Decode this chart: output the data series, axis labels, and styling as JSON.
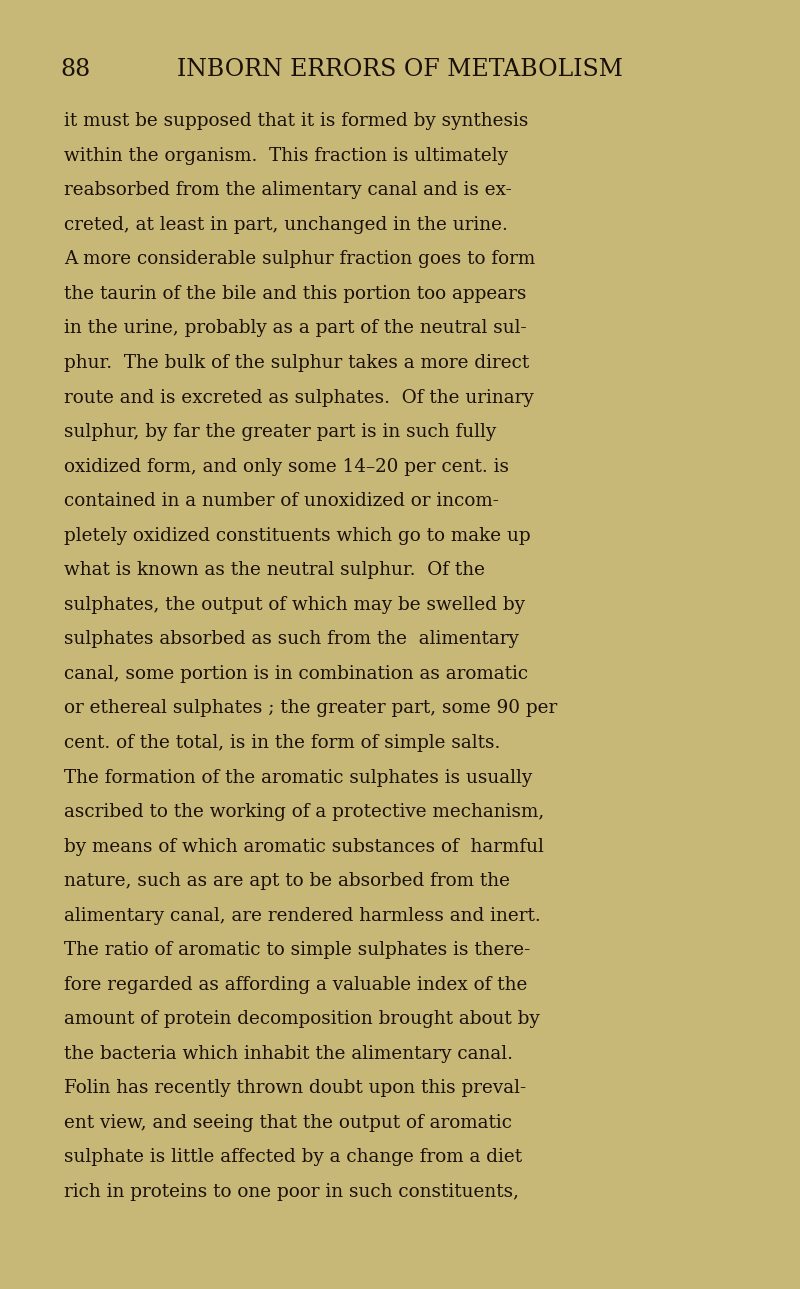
{
  "background_color": "#c8b878",
  "header_number": "88",
  "header_title": "INBORN ERRORS OF METABOLISM",
  "header_fontsize": 17,
  "header_number_fontsize": 17,
  "text_color": "#1a1008",
  "text_fontsize": 13.2,
  "lines": [
    "it must be supposed that it is formed by synthesis",
    "within the organism.  This fraction is ultimately",
    "reabsorbed from the alimentary canal and is ex-",
    "creted, at least in part, unchanged in the urine.",
    "A more considerable sulphur fraction goes to form",
    "the taurin of the bile and this portion too appears",
    "in the urine, probably as a part of the neutral sul-",
    "phur.  The bulk of the sulphur takes a more direct",
    "route and is excreted as sulphates.  Of the urinary",
    "sulphur, by far the greater part is in such fully",
    "oxidized form, and only some 14–20 per cent. is",
    "contained in a number of unoxidized or incom-",
    "pletely oxidized constituents which go to make up",
    "what is known as the neutral sulphur.  Of the",
    "sulphates, the output of which may be swelled by",
    "sulphates absorbed as such from the  alimentary",
    "canal, some portion is in combination as aromatic",
    "or ethereal sulphates ; the greater part, some 90 per",
    "cent. of the total, is in the form of simple salts.",
    "The formation of the aromatic sulphates is usually",
    "ascribed to the working of a protective mechanism,",
    "by means of which aromatic substances of  harmful",
    "nature, such as are apt to be absorbed from the",
    "alimentary canal, are rendered harmless and inert.",
    "The ratio of aromatic to simple sulphates is there-",
    "fore regarded as affording a valuable index of the",
    "amount of protein decomposition brought about by",
    "the bacteria which inhabit the alimentary canal.",
    "Folin has recently thrown doubt upon this preval-",
    "ent view, and seeing that the output of aromatic",
    "sulphate is little affected by a change from a diet",
    "rich in proteins to one poor in such constituents,"
  ]
}
